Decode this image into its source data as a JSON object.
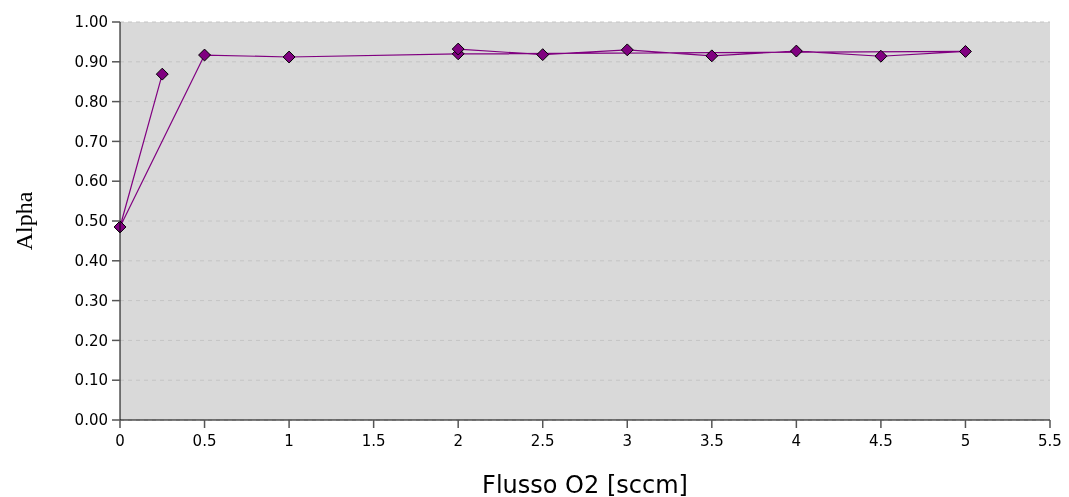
{
  "chart_data": {
    "type": "line",
    "xlabel": "Flusso O2 [sccm]",
    "ylabel": "Alpha",
    "series": [
      {
        "color": "#800080",
        "x": [
          0.25,
          0,
          0.5,
          1,
          2,
          5,
          4.5,
          4,
          3.5,
          3,
          2.5,
          2
        ],
        "values": [
          0.869,
          0.485,
          0.917,
          0.912,
          0.92,
          0.926,
          0.914,
          0.927,
          0.915,
          0.93,
          0.918,
          0.932
        ]
      }
    ],
    "xlim": [
      0,
      5.5
    ],
    "xticks": [
      0,
      0.5,
      1,
      1.5,
      2,
      2.5,
      3,
      3.5,
      4,
      4.5,
      5,
      5.5
    ],
    "ylim": [
      0,
      1
    ],
    "yticks": [
      {
        "value": 0,
        "label": "0.00"
      },
      {
        "value": 0.1,
        "label": "0.10"
      },
      {
        "value": 0.2,
        "label": "0.20"
      },
      {
        "value": 0.3,
        "label": "0.30"
      },
      {
        "value": 0.4,
        "label": "0.40"
      },
      {
        "value": 0.5,
        "label": "0.50"
      },
      {
        "value": 0.6,
        "label": "0.60"
      },
      {
        "value": 0.7,
        "label": "0.70"
      },
      {
        "value": 0.8,
        "label": "0.80"
      },
      {
        "value": 0.9,
        "label": "0.90"
      },
      {
        "value": 1,
        "label": "1.00"
      }
    ],
    "grid": "y",
    "marker": "diamond"
  }
}
